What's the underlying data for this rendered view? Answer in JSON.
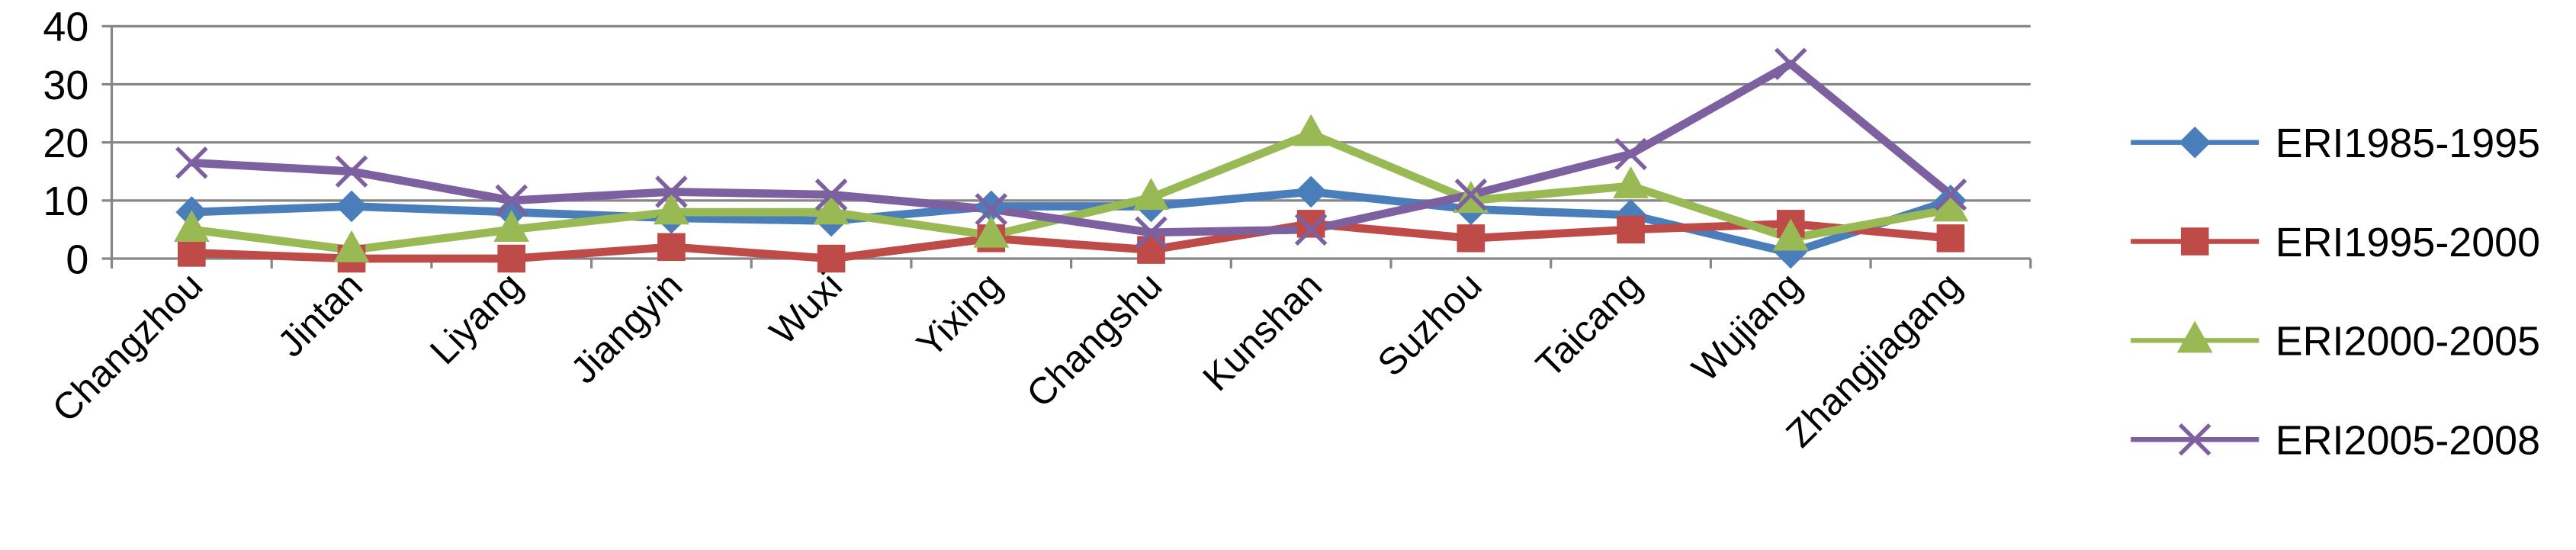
{
  "chart_data": {
    "type": "line",
    "categories": [
      "Changzhou",
      "Jintan",
      "Liyang",
      "Jiangyin",
      "Wuxi",
      "Yixing",
      "Changshu",
      "Kunshan",
      "Suzhou",
      "Taicang",
      "Wujiang",
      "Zhangjiagang"
    ],
    "series": [
      {
        "name": "ERI1985-1995",
        "color": "#4a7ebb",
        "marker": "diamond",
        "values": [
          8,
          9,
          8,
          7,
          6.5,
          9,
          9,
          11.5,
          8.5,
          7.5,
          1,
          10
        ]
      },
      {
        "name": "ERI1995-2000",
        "color": "#be4b48",
        "marker": "square",
        "values": [
          1,
          0,
          0,
          2,
          0,
          3.5,
          1.5,
          6,
          3.5,
          5,
          6,
          3.5
        ]
      },
      {
        "name": "ERI2000-2005",
        "color": "#98b954",
        "marker": "triangle",
        "values": [
          5,
          1.5,
          5,
          8,
          8,
          4,
          10.5,
          21.5,
          10,
          12.5,
          3.5,
          8.5
        ]
      },
      {
        "name": "ERI2005-2008",
        "color": "#7d60a0",
        "marker": "x",
        "values": [
          16.5,
          15,
          10,
          11.5,
          11,
          8.5,
          4.5,
          5,
          11,
          18,
          33.5,
          11
        ]
      }
    ],
    "ylim": [
      0,
      40
    ],
    "yticks": [
      0,
      10,
      20,
      30,
      40
    ],
    "grid": true,
    "legend": "right"
  }
}
